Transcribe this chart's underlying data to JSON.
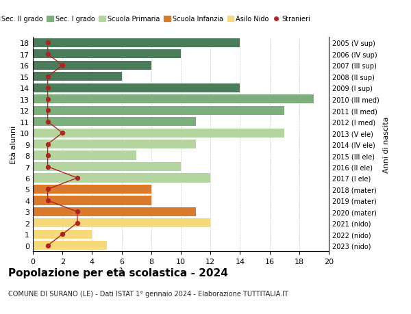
{
  "ages": [
    18,
    17,
    16,
    15,
    14,
    13,
    12,
    11,
    10,
    9,
    8,
    7,
    6,
    5,
    4,
    3,
    2,
    1,
    0
  ],
  "years_labels": [
    "2005 (V sup)",
    "2006 (IV sup)",
    "2007 (III sup)",
    "2008 (II sup)",
    "2009 (I sup)",
    "2010 (III med)",
    "2011 (II med)",
    "2012 (I med)",
    "2013 (V ele)",
    "2014 (IV ele)",
    "2015 (III ele)",
    "2016 (II ele)",
    "2017 (I ele)",
    "2018 (mater)",
    "2019 (mater)",
    "2020 (mater)",
    "2021 (nido)",
    "2022 (nido)",
    "2023 (nido)"
  ],
  "bar_values": [
    14,
    10,
    8,
    6,
    14,
    19,
    17,
    11,
    17,
    11,
    7,
    10,
    12,
    8,
    8,
    11,
    12,
    4,
    5
  ],
  "bar_colors": [
    "#4a7c59",
    "#4a7c59",
    "#4a7c59",
    "#4a7c59",
    "#4a7c59",
    "#7daf7d",
    "#7daf7d",
    "#7daf7d",
    "#b5d5a0",
    "#b5d5a0",
    "#b5d5a0",
    "#b5d5a0",
    "#b5d5a0",
    "#d97b2a",
    "#d97b2a",
    "#d97b2a",
    "#f5d97a",
    "#f5d97a",
    "#f5d97a"
  ],
  "stranieri_x": [
    1,
    1,
    2,
    1,
    1,
    1,
    1,
    1,
    2,
    1,
    1,
    1,
    3,
    1,
    1,
    3,
    3,
    2,
    1
  ],
  "color_sec2": "#4a7c59",
  "color_sec1": "#7daf7d",
  "color_primaria": "#b5d5a0",
  "color_infanzia": "#d97b2a",
  "color_nido": "#f5d97a",
  "color_stranieri": "#b22222",
  "title": "Popolazione per età scolastica - 2024",
  "subtitle": "COMUNE DI SURANO (LE) - Dati ISTAT 1° gennaio 2024 - Elaborazione TUTTITALIA.IT",
  "ylabel_left": "Età alunni",
  "ylabel_right": "Anni di nascita",
  "xlim": [
    0,
    20
  ],
  "xticks": [
    0,
    2,
    4,
    6,
    8,
    10,
    12,
    14,
    16,
    18,
    20
  ],
  "legend_labels": [
    "Sec. II grado",
    "Sec. I grado",
    "Scuola Primaria",
    "Scuola Infanzia",
    "Asilo Nido",
    "Stranieri"
  ],
  "bar_height": 0.8
}
